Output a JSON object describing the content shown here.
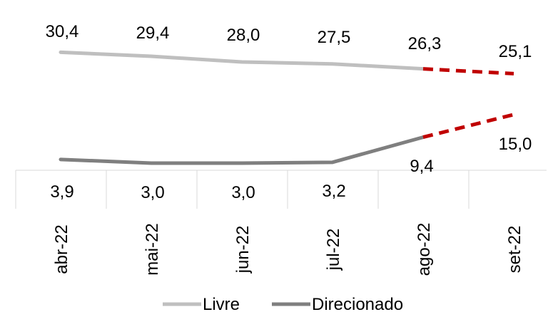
{
  "chart_data": {
    "type": "line",
    "categories": [
      "abr-22",
      "mai-22",
      "jun-22",
      "jul-22",
      "ago-22",
      "set-22"
    ],
    "projected_from_index": 4,
    "series": [
      {
        "name": "Livre",
        "values": [
          30.4,
          29.4,
          28.0,
          27.5,
          26.3,
          25.1
        ],
        "labels": [
          "30,4",
          "29,4",
          "28,0",
          "27,5",
          "26,3",
          "25,1"
        ],
        "color": "#bfbfbf"
      },
      {
        "name": "Direcionado",
        "values": [
          3.9,
          3.0,
          3.0,
          3.2,
          9.4,
          15.0
        ],
        "labels": [
          "3,9",
          "3,0",
          "3,0",
          "3,2",
          "9,4",
          "15,0"
        ],
        "color": "#7f7f7f"
      }
    ],
    "projection_color": "#c00000",
    "legend_position": "bottom",
    "grid": false
  }
}
